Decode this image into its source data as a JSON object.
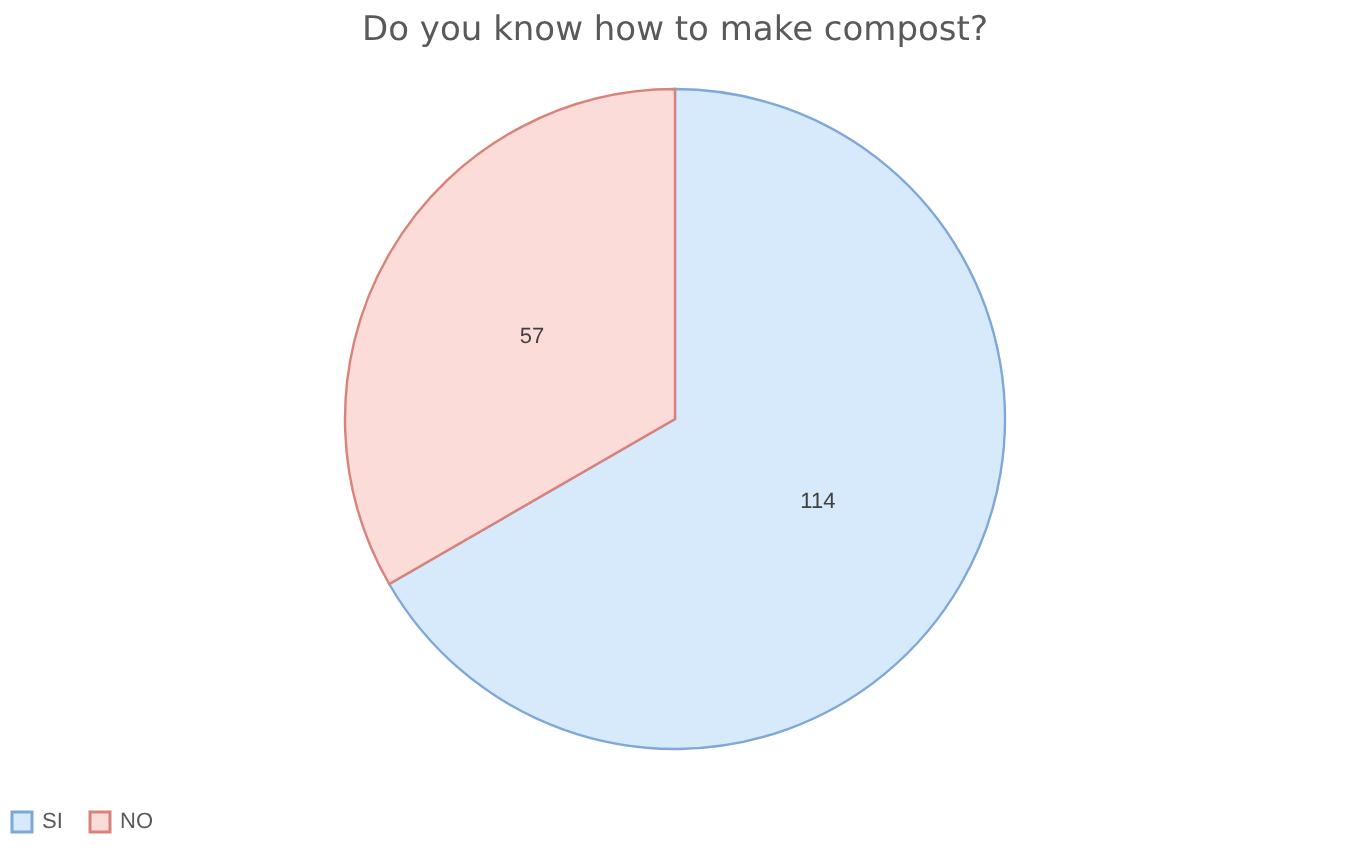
{
  "chart_data": {
    "type": "pie",
    "title": "Do you know how to make compost?",
    "categories": [
      "SI",
      "NO"
    ],
    "values": [
      114,
      57
    ],
    "colors": [
      "#d6eafb",
      "#fbdcd8"
    ],
    "data_labels": true,
    "legend": "bottom"
  }
}
